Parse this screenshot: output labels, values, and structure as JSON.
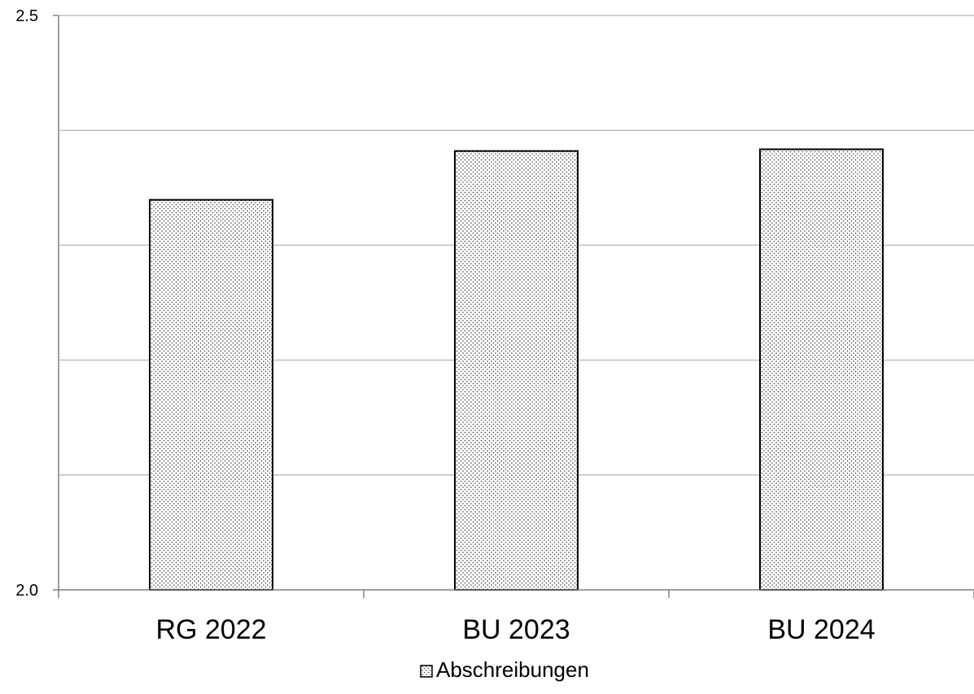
{
  "chart_data": {
    "type": "bar",
    "categories": [
      "RG 2022",
      "BU 2023",
      "BU 2024"
    ],
    "series": [
      {
        "name": "Abschreibungen",
        "values": [
          2.3395,
          2.382,
          2.3835
        ],
        "pattern": "dotted",
        "fill": "#ffffff",
        "stroke": "#000000"
      }
    ],
    "ylim": [
      2.0,
      2.5
    ],
    "y_ticks": [
      "2.0",
      "2.5"
    ],
    "gridlines": [
      2.1,
      2.2,
      2.3,
      2.4,
      2.5
    ],
    "grid": true,
    "legend": "bottom-center",
    "title": "",
    "xlabel": "",
    "ylabel": "",
    "colors": {
      "grid": "#c0c0c0",
      "axis": "#808080",
      "bar_stroke": "#000000",
      "pattern_dot": "#3a3a3a"
    }
  }
}
